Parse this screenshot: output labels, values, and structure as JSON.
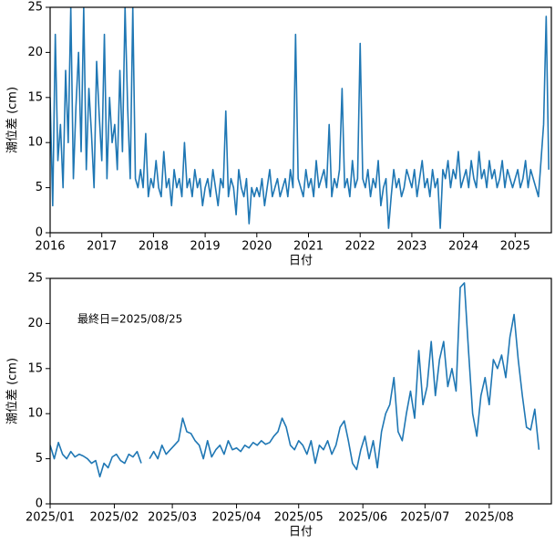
{
  "chart_data": [
    {
      "type": "line",
      "xlabel": "日付",
      "ylabel": "潮位差 (cm)",
      "xlim": [
        2016,
        2025.7
      ],
      "xticks": [
        2016,
        2017,
        2018,
        2019,
        2020,
        2021,
        2022,
        2023,
        2024,
        2025
      ],
      "ylim": [
        0,
        25
      ],
      "yticks": [
        0,
        5,
        10,
        15,
        20,
        25
      ],
      "x": [
        2016.0,
        2016.05,
        2016.1,
        2016.15,
        2016.2,
        2016.25,
        2016.3,
        2016.35,
        2016.4,
        2016.45,
        2016.5,
        2016.55,
        2016.6,
        2016.65,
        2016.7,
        2016.75,
        2016.8,
        2016.85,
        2016.9,
        2016.95,
        2017.0,
        2017.05,
        2017.1,
        2017.15,
        2017.2,
        2017.25,
        2017.3,
        2017.35,
        2017.4,
        2017.45,
        2017.5,
        2017.55,
        2017.6,
        2017.65,
        2017.7,
        2017.75,
        2017.8,
        2017.85,
        2017.9,
        2017.95,
        2018.0,
        2018.05,
        2018.1,
        2018.15,
        2018.2,
        2018.25,
        2018.3,
        2018.35,
        2018.4,
        2018.45,
        2018.5,
        2018.55,
        2018.6,
        2018.65,
        2018.7,
        2018.75,
        2018.8,
        2018.85,
        2018.9,
        2018.95,
        2019.0,
        2019.05,
        2019.1,
        2019.15,
        2019.2,
        2019.25,
        2019.3,
        2019.35,
        2019.4,
        2019.45,
        2019.5,
        2019.55,
        2019.6,
        2019.65,
        2019.7,
        2019.75,
        2019.8,
        2019.85,
        2019.9,
        2019.95,
        2020.0,
        2020.05,
        2020.1,
        2020.15,
        2020.2,
        2020.25,
        2020.3,
        2020.35,
        2020.4,
        2020.45,
        2020.5,
        2020.55,
        2020.6,
        2020.65,
        2020.7,
        2020.75,
        2020.8,
        2020.85,
        2020.9,
        2020.95,
        2021.0,
        2021.05,
        2021.1,
        2021.15,
        2021.2,
        2021.25,
        2021.3,
        2021.35,
        2021.4,
        2021.45,
        2021.5,
        2021.55,
        2021.6,
        2021.65,
        2021.7,
        2021.75,
        2021.8,
        2021.85,
        2021.9,
        2021.95,
        2022.0,
        2022.05,
        2022.1,
        2022.15,
        2022.2,
        2022.25,
        2022.3,
        2022.35,
        2022.4,
        2022.45,
        2022.5,
        2022.55,
        2022.6,
        2022.65,
        2022.7,
        2022.75,
        2022.8,
        2022.85,
        2022.9,
        2022.95,
        2023.0,
        2023.05,
        2023.1,
        2023.15,
        2023.2,
        2023.25,
        2023.3,
        2023.35,
        2023.4,
        2023.45,
        2023.5,
        2023.55,
        2023.6,
        2023.65,
        2023.7,
        2023.75,
        2023.8,
        2023.85,
        2023.9,
        2023.95,
        2024.0,
        2024.05,
        2024.1,
        2024.15,
        2024.2,
        2024.25,
        2024.3,
        2024.35,
        2024.4,
        2024.45,
        2024.5,
        2024.55,
        2024.6,
        2024.65,
        2024.7,
        2024.75,
        2024.8,
        2024.85,
        2024.9,
        2024.95,
        2025.0,
        2025.05,
        2025.1,
        2025.15,
        2025.2,
        2025.25,
        2025.3,
        2025.35,
        2025.4,
        2025.45,
        2025.5,
        2025.55,
        2025.6,
        2025.65
      ],
      "series": [
        {
          "color": "#1f77b4",
          "values": [
            15,
            3,
            22,
            8,
            12,
            5,
            18,
            10,
            25,
            6,
            14,
            20,
            9,
            25,
            7,
            16,
            11,
            5,
            19,
            13,
            8,
            22,
            6,
            15,
            10,
            12,
            7,
            18,
            9,
            25,
            14,
            6,
            25,
            6,
            5,
            7,
            5,
            11,
            4,
            6,
            5,
            8,
            5,
            4,
            9,
            5,
            6,
            3,
            7,
            5,
            6,
            4,
            10,
            5,
            6,
            4,
            7,
            5,
            6,
            3,
            5,
            6,
            4,
            7,
            5,
            3,
            6,
            5,
            13.5,
            4,
            6,
            5,
            2,
            7,
            5,
            4,
            6,
            1,
            5,
            4,
            5,
            4,
            6,
            3,
            5,
            7,
            4,
            5,
            6,
            4,
            5,
            6,
            4,
            7,
            5,
            22,
            6,
            5,
            4,
            7,
            5,
            6,
            4,
            8,
            5,
            6,
            7,
            5,
            12,
            4,
            6,
            5,
            7,
            16,
            5,
            6,
            4,
            8,
            5,
            6,
            21,
            6,
            5,
            7,
            4,
            6,
            5,
            8,
            3,
            5,
            6,
            0.5,
            4,
            7,
            5,
            6,
            4,
            5,
            7,
            6,
            5,
            7,
            4,
            6,
            8,
            5,
            6,
            4,
            7,
            5,
            6,
            0.5,
            7,
            6,
            8,
            5,
            7,
            6,
            9,
            5,
            6,
            7,
            5,
            8,
            6,
            5,
            9,
            6,
            7,
            5,
            8,
            6,
            7,
            5,
            6,
            8,
            5,
            7,
            6,
            5,
            6,
            7,
            5,
            6,
            8,
            5,
            7,
            6,
            5,
            4,
            8,
            12,
            24,
            7
          ]
        }
      ]
    },
    {
      "type": "line",
      "xlabel": "日付",
      "ylabel": "潮位差 (cm)",
      "annotation": "最終日=2025/08/25",
      "xlim": [
        0,
        242
      ],
      "xticks": [
        {
          "value": 0,
          "label": "2025/01"
        },
        {
          "value": 31,
          "label": "2025/02"
        },
        {
          "value": 59,
          "label": "2025/03"
        },
        {
          "value": 90,
          "label": "2025/04"
        },
        {
          "value": 120,
          "label": "2025/05"
        },
        {
          "value": 151,
          "label": "2025/06"
        },
        {
          "value": 181,
          "label": "2025/07"
        },
        {
          "value": 212,
          "label": "2025/08"
        }
      ],
      "ylim": [
        0,
        25
      ],
      "yticks": [
        0,
        5,
        10,
        15,
        20,
        25
      ],
      "x": [
        0,
        2,
        4,
        6,
        8,
        10,
        12,
        14,
        16,
        18,
        20,
        22,
        24,
        26,
        28,
        30,
        32,
        34,
        36,
        38,
        40,
        42,
        44,
        46,
        48,
        50,
        52,
        54,
        56,
        58,
        60,
        62,
        64,
        66,
        68,
        70,
        72,
        74,
        76,
        78,
        80,
        82,
        84,
        86,
        88,
        90,
        92,
        94,
        96,
        98,
        100,
        102,
        104,
        106,
        108,
        110,
        112,
        114,
        116,
        118,
        120,
        122,
        124,
        126,
        128,
        130,
        132,
        134,
        136,
        138,
        140,
        142,
        144,
        146,
        148,
        150,
        152,
        154,
        156,
        158,
        160,
        162,
        164,
        166,
        168,
        170,
        172,
        174,
        176,
        178,
        180,
        182,
        184,
        186,
        188,
        190,
        192,
        194,
        196,
        198,
        200,
        202,
        204,
        206,
        208,
        210,
        212,
        214,
        216,
        218,
        220,
        222,
        224,
        226,
        228,
        230,
        232,
        234,
        236
      ],
      "series": [
        {
          "color": "#1f77b4",
          "values": [
            6.5,
            5.0,
            6.8,
            5.5,
            5.0,
            5.8,
            5.2,
            5.5,
            5.3,
            5.0,
            4.5,
            4.8,
            3.0,
            4.5,
            4.0,
            5.2,
            5.5,
            4.8,
            4.5,
            5.5,
            5.2,
            5.8,
            4.5,
            null,
            5.0,
            5.8,
            5.0,
            6.5,
            5.5,
            6.0,
            6.5,
            7.0,
            9.5,
            8.0,
            7.8,
            7.0,
            6.5,
            5.0,
            7.0,
            5.2,
            6.0,
            6.5,
            5.5,
            7.0,
            6.0,
            6.2,
            5.8,
            6.5,
            6.2,
            6.8,
            6.5,
            7.0,
            6.6,
            6.8,
            7.5,
            8.0,
            9.5,
            8.5,
            6.5,
            6.0,
            7.0,
            6.5,
            5.5,
            7.0,
            4.5,
            6.5,
            6.0,
            7.0,
            5.5,
            6.5,
            8.5,
            9.2,
            7.0,
            4.5,
            3.8,
            6.0,
            7.5,
            5.0,
            7.0,
            4.0,
            8.0,
            10.0,
            11.0,
            14.0,
            8.0,
            7.0,
            10.0,
            12.5,
            9.5,
            17.0,
            11.0,
            13.0,
            18.0,
            12.0,
            16.0,
            18.0,
            13.0,
            15.0,
            12.5,
            24.0,
            24.5,
            17.0,
            10.0,
            7.5,
            12.0,
            14.0,
            11.0,
            16.0,
            15.0,
            16.5,
            14.0,
            18.5,
            21.0,
            16.0,
            12.0,
            8.5,
            8.2,
            10.5,
            6.0
          ]
        }
      ]
    }
  ]
}
